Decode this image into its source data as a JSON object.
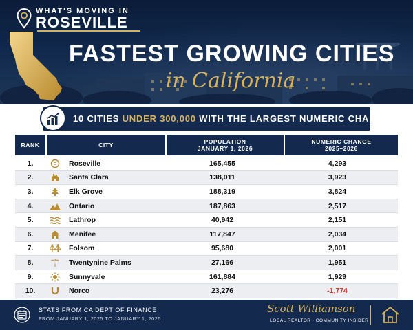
{
  "header": {
    "brand_small": "WHAT'S MOVING IN",
    "brand_big": "ROSEVILLE",
    "title": "FASTEST GROWING CITIES",
    "subtitle": "in California"
  },
  "banner": {
    "text_before": "10 CITIES ",
    "text_highlight": "UNDER 300,000",
    "text_after": " WITH THE LARGEST NUMERIC CHANGE",
    "icon": "bar-chart-icon"
  },
  "table": {
    "headers": {
      "rank": "RANK",
      "city": "CITY",
      "pop_line1": "POPULATION",
      "pop_line2": "JANUARY 1, 2026",
      "chg_line1": "NUMERIC CHANGE",
      "chg_line2": "2025–2026"
    },
    "rows": [
      {
        "rank": "1.",
        "city": "Roseville",
        "icon": "rose-icon",
        "population": "165,455",
        "change": "4,293"
      },
      {
        "rank": "2.",
        "city": "Santa Clara",
        "icon": "mission-icon",
        "population": "138,011",
        "change": "3,923"
      },
      {
        "rank": "3.",
        "city": "Elk Grove",
        "icon": "tree-icon",
        "population": "188,319",
        "change": "3,824"
      },
      {
        "rank": "4.",
        "city": "Ontario",
        "icon": "mountains-icon",
        "population": "187,863",
        "change": "2,517"
      },
      {
        "rank": "5.",
        "city": "Lathrop",
        "icon": "waves-icon",
        "population": "40,942",
        "change": "2,151"
      },
      {
        "rank": "6.",
        "city": "Menifee",
        "icon": "house-icon",
        "population": "117,847",
        "change": "2,034"
      },
      {
        "rank": "7.",
        "city": "Folsom",
        "icon": "bridge-icon",
        "population": "95,680",
        "change": "2,001"
      },
      {
        "rank": "8.",
        "city": "Twentynine Palms",
        "icon": "palm-icon",
        "population": "27,166",
        "change": "1,951"
      },
      {
        "rank": "9.",
        "city": "Sunnyvale",
        "icon": "sun-icon",
        "population": "161,884",
        "change": "1,929"
      },
      {
        "rank": "10.",
        "city": "Norco",
        "icon": "horseshoe-icon",
        "population": "23,276",
        "change": "-1,774",
        "negative": true
      }
    ]
  },
  "footer": {
    "source": "STATS FROM CA DEPT OF FINANCE",
    "range": "FROM JANUARY 1, 2025 TO JANUARY 1, 2026",
    "signature": "Scott Williamson",
    "role": "LOCAL REALTOR · COMMUNITY INSIDER"
  },
  "colors": {
    "navy": "#14294e",
    "gold": "#d8b25a",
    "negative": "#d0342c"
  }
}
